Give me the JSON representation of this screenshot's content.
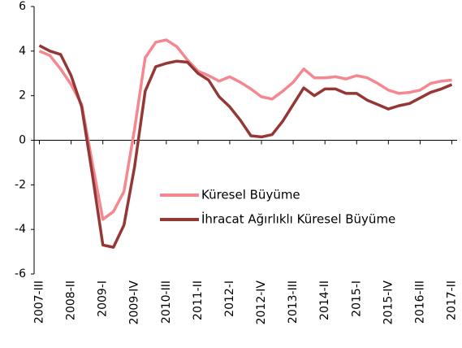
{
  "chart_data": {
    "type": "line",
    "categories": [
      "2007-III",
      null,
      null,
      "2008-II",
      null,
      null,
      "2009-I",
      null,
      null,
      "2009-IV",
      null,
      null,
      "2010-III",
      null,
      null,
      "2011-II",
      null,
      null,
      "2012-I",
      null,
      null,
      "2012-IV",
      null,
      null,
      "2013-III",
      null,
      null,
      "2014-II",
      null,
      null,
      "2015-I",
      null,
      null,
      "2015-IV",
      null,
      null,
      "2016-III",
      null,
      null,
      "2017-II"
    ],
    "series": [
      {
        "name": "Küresel Büyüme",
        "color": "#f4878f",
        "values": [
          4.0,
          3.8,
          3.2,
          2.5,
          1.6,
          -1.0,
          -3.55,
          -3.2,
          -2.3,
          0.5,
          3.7,
          4.4,
          4.5,
          4.2,
          3.6,
          3.1,
          2.9,
          2.65,
          2.85,
          2.6,
          2.3,
          1.95,
          1.85,
          2.2,
          2.6,
          3.2,
          2.8,
          2.8,
          2.85,
          2.75,
          2.9,
          2.8,
          2.55,
          2.25,
          2.1,
          2.15,
          2.25,
          2.55,
          2.65,
          2.7
        ]
      },
      {
        "name": "İhracat Ağırlıklı Küresel Büyüme",
        "color": "#953735",
        "values": [
          4.25,
          4.0,
          3.85,
          2.9,
          1.5,
          -1.5,
          -4.7,
          -4.8,
          -3.8,
          -1.2,
          2.2,
          3.3,
          3.45,
          3.55,
          3.5,
          3.0,
          2.7,
          1.95,
          1.5,
          0.9,
          0.2,
          0.15,
          0.25,
          0.85,
          1.6,
          2.35,
          2.0,
          2.3,
          2.3,
          2.1,
          2.1,
          1.8,
          1.6,
          1.4,
          1.55,
          1.65,
          1.9,
          2.15,
          2.3,
          2.5
        ]
      }
    ],
    "ylim": [
      -6,
      6
    ],
    "yticks": [
      -6,
      -4,
      -2,
      0,
      2,
      4,
      6
    ],
    "grid": false,
    "legend": "center"
  }
}
